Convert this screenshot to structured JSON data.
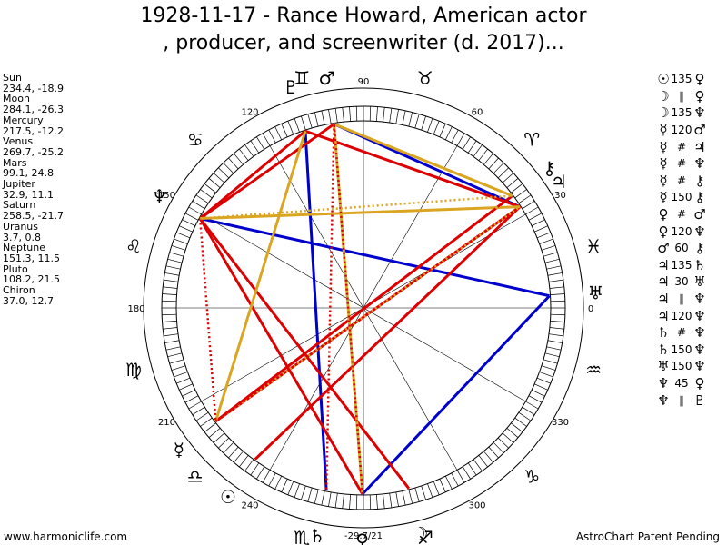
{
  "title_line1": "1928-11-17 - Rance Howard, American actor",
  "title_line2": ", producer, and screenwriter (d. 2017)...",
  "planets": [
    {
      "name": "Sun",
      "coords": "234.4, -18.9",
      "lon": 234.4,
      "glyph": "☉"
    },
    {
      "name": "Moon",
      "coords": "284.1, -26.3",
      "lon": 284.1,
      "glyph": "☽"
    },
    {
      "name": "Mercury",
      "coords": "217.5, -12.2",
      "lon": 217.5,
      "glyph": "☿"
    },
    {
      "name": "Venus",
      "coords": "269.7, -25.2",
      "lon": 269.7,
      "glyph": "♀"
    },
    {
      "name": "Mars",
      "coords": "99.1, 24.8",
      "lon": 99.1,
      "glyph": "♂"
    },
    {
      "name": "Jupiter",
      "coords": "32.9, 11.1",
      "lon": 32.9,
      "glyph": "♃"
    },
    {
      "name": "Saturn",
      "coords": "258.5, -21.7",
      "lon": 258.5,
      "glyph": "♄"
    },
    {
      "name": "Uranus",
      "coords": "3.7, 0.8",
      "lon": 3.7,
      "glyph": "♅"
    },
    {
      "name": "Neptune",
      "coords": "151.3, 11.5",
      "lon": 151.3,
      "glyph": "♆"
    },
    {
      "name": "Pluto",
      "coords": "108.2, 21.5",
      "lon": 108.2,
      "glyph": "♇"
    },
    {
      "name": "Chiron",
      "coords": "37.0, 12.7",
      "lon": 37.0,
      "glyph": "⚷"
    }
  ],
  "aspects": [
    {
      "p1": "☉",
      "sym": "135",
      "p2": "♀"
    },
    {
      "p1": "☽",
      "sym": "∥",
      "p2": "♀"
    },
    {
      "p1": "☽",
      "sym": "135",
      "p2": "♆"
    },
    {
      "p1": "☿",
      "sym": "120",
      "p2": "♂"
    },
    {
      "p1": "☿",
      "sym": "#",
      "p2": "♃"
    },
    {
      "p1": "☿",
      "sym": "#",
      "p2": "♆"
    },
    {
      "p1": "☿",
      "sym": "#",
      "p2": "⚷"
    },
    {
      "p1": "☿",
      "sym": "150",
      "p2": "⚷"
    },
    {
      "p1": "♀",
      "sym": "#",
      "p2": "♂"
    },
    {
      "p1": "♀",
      "sym": "120",
      "p2": "♆"
    },
    {
      "p1": "♂",
      "sym": "60",
      "p2": "⚷"
    },
    {
      "p1": "♃",
      "sym": "135",
      "p2": "♄"
    },
    {
      "p1": "♃",
      "sym": "30",
      "p2": "♅"
    },
    {
      "p1": "♃",
      "sym": "∥",
      "p2": "♆"
    },
    {
      "p1": "♃",
      "sym": "120",
      "p2": "♆"
    },
    {
      "p1": "♄",
      "sym": "#",
      "p2": "♆"
    },
    {
      "p1": "♄",
      "sym": "150",
      "p2": "♆"
    },
    {
      "p1": "♅",
      "sym": "150",
      "p2": "♆"
    },
    {
      "p1": "♆",
      "sym": "45",
      "p2": "♀"
    },
    {
      "p1": "♆",
      "sym": "∥",
      "p2": "♇"
    }
  ],
  "wheel": {
    "degree_labels": [
      "0",
      "30",
      "60",
      "90",
      "120",
      "150",
      "180",
      "210",
      "240",
      "-29.7/21",
      "300",
      "330"
    ],
    "signs": [
      "♓",
      "♈",
      "♉",
      "♊",
      "♋",
      "♌",
      "♍",
      "♎",
      "♏",
      "♐",
      "♑",
      "♒"
    ]
  },
  "chart_lines": [
    {
      "a": "Mars",
      "b": "Jupiter",
      "style": "solid",
      "color": "#0000cc"
    },
    {
      "a": "Venus",
      "b": "Uranus",
      "style": "solid",
      "color": "#0000cc"
    },
    {
      "a": "Neptune",
      "b": "Uranus",
      "style": "solid",
      "color": "#0000cc"
    },
    {
      "a": "Pluto",
      "b": "Saturn",
      "style": "solid",
      "color": "#0000cc"
    },
    {
      "a": "Pluto",
      "b": "Jupiter",
      "style": "solid",
      "color": "#dd0000"
    },
    {
      "a": "Pluto",
      "b": "Neptune",
      "style": "solid",
      "color": "#dd0000"
    },
    {
      "a": "Neptune",
      "b": "Venus",
      "style": "solid",
      "color": "#dd0000"
    },
    {
      "a": "Neptune",
      "b": "Moon",
      "style": "solid",
      "color": "#dd0000"
    },
    {
      "a": "Sun",
      "b": "Jupiter",
      "style": "solid",
      "color": "#dd0000"
    },
    {
      "a": "Mercury",
      "b": "Chiron",
      "style": "solid",
      "color": "#dd0000"
    },
    {
      "a": "Mercury",
      "b": "Jupiter",
      "style": "solid",
      "color": "#dd0000"
    },
    {
      "a": "Mars",
      "b": "Neptune",
      "style": "solid",
      "color": "#dd0000"
    },
    {
      "a": "Pluto",
      "b": "Mercury",
      "style": "solid",
      "color": "#daa520"
    },
    {
      "a": "Mars",
      "b": "Venus",
      "style": "solid",
      "color": "#daa520"
    },
    {
      "a": "Mars",
      "b": "Chiron",
      "style": "solid",
      "color": "#daa520"
    },
    {
      "a": "Neptune",
      "b": "Jupiter",
      "style": "solid",
      "color": "#daa520"
    },
    {
      "a": "Mercury",
      "b": "Jupiter",
      "style": "dotted",
      "color": "#daa520"
    },
    {
      "a": "Mars",
      "b": "Saturn",
      "style": "dotted",
      "color": "#dd0000"
    },
    {
      "a": "Neptune",
      "b": "Mercury",
      "style": "dotted",
      "color": "#dd0000"
    },
    {
      "a": "Venus",
      "b": "Mars",
      "style": "dotted",
      "color": "#dd0000"
    },
    {
      "a": "Mercury",
      "b": "Chiron",
      "style": "dotted",
      "color": "#dd0000"
    },
    {
      "a": "Neptune",
      "b": "Chiron",
      "style": "dotted",
      "color": "#daa520"
    }
  ],
  "footer_left": "www.harmoniclife.com",
  "footer_right": "AstroChart Patent Pending"
}
